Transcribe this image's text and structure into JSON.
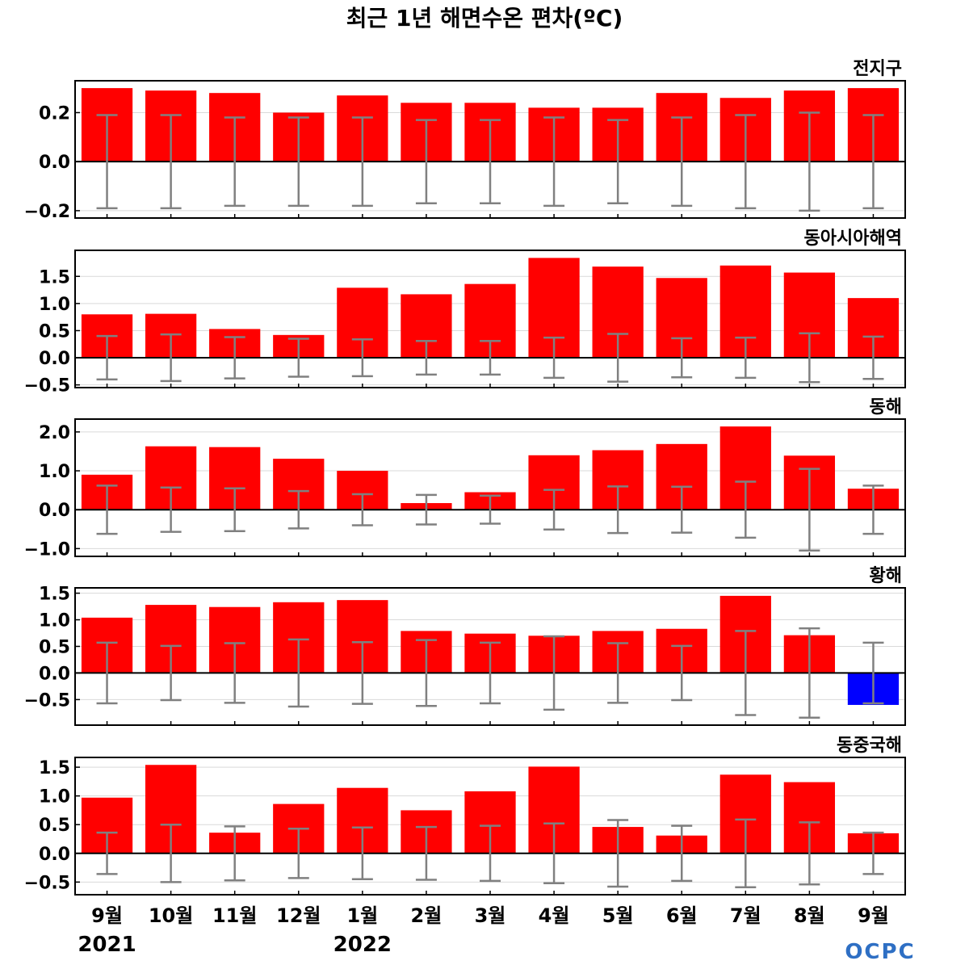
{
  "title": "최근 1년 해면수온 편차(ºC)",
  "logo": "OCPC",
  "colors": {
    "positive": "#ff0000",
    "negative": "#0000ff",
    "error": "#808080"
  },
  "x_labels": [
    "9월",
    "10월",
    "11월",
    "12월",
    "1월",
    "2월",
    "3월",
    "4월",
    "5월",
    "6월",
    "7월",
    "8월",
    "9월"
  ],
  "year_labels": [
    {
      "index": 0,
      "text": "2021"
    },
    {
      "index": 4,
      "text": "2022"
    }
  ],
  "chart_data": [
    {
      "type": "bar",
      "title": "전지구",
      "categories": [
        "9월",
        "10월",
        "11월",
        "12월",
        "1월",
        "2월",
        "3월",
        "4월",
        "5월",
        "6월",
        "7월",
        "8월",
        "9월"
      ],
      "values": [
        0.3,
        0.29,
        0.28,
        0.2,
        0.27,
        0.24,
        0.24,
        0.22,
        0.22,
        0.28,
        0.26,
        0.29,
        0.3
      ],
      "error": [
        0.19,
        0.19,
        0.18,
        0.18,
        0.18,
        0.17,
        0.17,
        0.18,
        0.17,
        0.18,
        0.19,
        0.2,
        0.19
      ],
      "ylim": [
        -0.23,
        0.33
      ],
      "yticks": [
        -0.2,
        0.0,
        0.2
      ],
      "ytick_labels": [
        "−0.2",
        "0.0",
        "0.2"
      ]
    },
    {
      "type": "bar",
      "title": "동아시아해역",
      "categories": [
        "9월",
        "10월",
        "11월",
        "12월",
        "1월",
        "2월",
        "3월",
        "4월",
        "5월",
        "6월",
        "7월",
        "8월",
        "9월"
      ],
      "values": [
        0.8,
        0.81,
        0.53,
        0.42,
        1.29,
        1.17,
        1.36,
        1.84,
        1.68,
        1.47,
        1.7,
        1.57,
        1.1
      ],
      "error": [
        0.4,
        0.43,
        0.38,
        0.35,
        0.34,
        0.31,
        0.31,
        0.37,
        0.44,
        0.36,
        0.37,
        0.45,
        0.39
      ],
      "ylim": [
        -0.55,
        1.98
      ],
      "yticks": [
        -0.5,
        0.0,
        0.5,
        1.0,
        1.5
      ],
      "ytick_labels": [
        "−0.5",
        "0.0",
        "0.5",
        "1.0",
        "1.5"
      ]
    },
    {
      "type": "bar",
      "title": "동해",
      "categories": [
        "9월",
        "10월",
        "11월",
        "12월",
        "1월",
        "2월",
        "3월",
        "4월",
        "5월",
        "6월",
        "7월",
        "8월",
        "9월"
      ],
      "values": [
        0.9,
        1.63,
        1.61,
        1.31,
        1.0,
        0.17,
        0.45,
        1.4,
        1.53,
        1.69,
        2.14,
        1.39,
        0.54
      ],
      "error": [
        0.62,
        0.57,
        0.55,
        0.48,
        0.4,
        0.38,
        0.36,
        0.51,
        0.6,
        0.59,
        0.72,
        1.05,
        0.62
      ],
      "ylim": [
        -1.2,
        2.33
      ],
      "yticks": [
        -1.0,
        0.0,
        1.0,
        2.0
      ],
      "ytick_labels": [
        "−1.0",
        "0.0",
        "1.0",
        "2.0"
      ]
    },
    {
      "type": "bar",
      "title": "황해",
      "categories": [
        "9월",
        "10월",
        "11월",
        "12월",
        "1월",
        "2월",
        "3월",
        "4월",
        "5월",
        "6월",
        "7월",
        "8월",
        "9월"
      ],
      "values": [
        1.04,
        1.28,
        1.24,
        1.33,
        1.37,
        0.79,
        0.74,
        0.7,
        0.79,
        0.83,
        1.45,
        0.71,
        -0.6
      ],
      "error": [
        0.57,
        0.51,
        0.56,
        0.63,
        0.58,
        0.62,
        0.57,
        0.69,
        0.56,
        0.51,
        0.79,
        0.84,
        0.57
      ],
      "ylim": [
        -0.98,
        1.6
      ],
      "yticks": [
        -0.5,
        0.0,
        0.5,
        1.0,
        1.5
      ],
      "ytick_labels": [
        "−0.5",
        "0.0",
        "0.5",
        "1.0",
        "1.5"
      ]
    },
    {
      "type": "bar",
      "title": "동중국해",
      "categories": [
        "9월",
        "10월",
        "11월",
        "12월",
        "1월",
        "2월",
        "3월",
        "4월",
        "5월",
        "6월",
        "7월",
        "8월",
        "9월"
      ],
      "values": [
        0.97,
        1.54,
        0.36,
        0.86,
        1.14,
        0.75,
        1.08,
        1.51,
        0.46,
        0.31,
        1.37,
        1.24,
        0.35
      ],
      "error": [
        0.36,
        0.5,
        0.47,
        0.43,
        0.45,
        0.46,
        0.48,
        0.52,
        0.58,
        0.48,
        0.59,
        0.54,
        0.36
      ],
      "ylim": [
        -0.72,
        1.67
      ],
      "yticks": [
        -0.5,
        0.0,
        0.5,
        1.0,
        1.5
      ],
      "ytick_labels": [
        "−0.5",
        "0.0",
        "0.5",
        "1.0",
        "1.5"
      ]
    }
  ]
}
